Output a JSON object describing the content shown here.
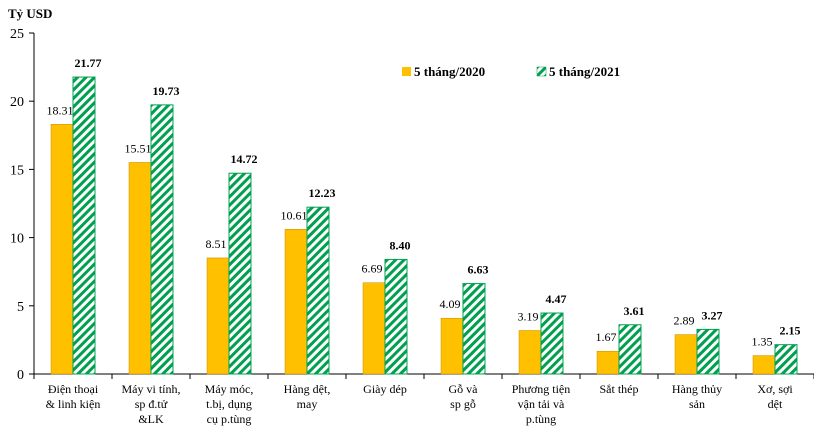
{
  "chart_data": {
    "type": "bar",
    "ylabel": "Tỷ USD",
    "ylim": [
      0,
      25
    ],
    "yticks": [
      0,
      5,
      10,
      15,
      20,
      25
    ],
    "grid": false,
    "legend_position": "top-right",
    "categories": [
      [
        "Điện thoại",
        "& linh kiện"
      ],
      [
        "Máy vi tính,",
        "sp đ.tử",
        "&LK"
      ],
      [
        "Máy móc,",
        "t.bị, dụng",
        "cụ p.tùng"
      ],
      [
        "Hàng dệt,",
        "may"
      ],
      [
        "Giày dép"
      ],
      [
        "Gỗ và",
        "sp gỗ"
      ],
      [
        "Phương tiện",
        "vận tải và",
        "p.tùng"
      ],
      [
        "Sắt thép"
      ],
      [
        "Hàng thủy",
        "sản"
      ],
      [
        "Xơ, sợi",
        "dệt"
      ]
    ],
    "series": [
      {
        "name": "5 tháng/2020",
        "color": "#FFC000",
        "pattern": "solid",
        "values": [
          18.31,
          15.51,
          8.51,
          10.61,
          6.69,
          4.09,
          3.19,
          1.67,
          2.89,
          1.35
        ],
        "labels": [
          "18.31",
          "15.51",
          "8.51",
          "10.61",
          "6.69",
          "4.09",
          "3.19",
          "1.67",
          "2.89",
          "1.35"
        ]
      },
      {
        "name": "5 tháng/2021",
        "color": "#00A050",
        "pattern": "diagonal-stripes",
        "values": [
          21.77,
          19.73,
          14.72,
          12.23,
          8.4,
          6.63,
          4.47,
          3.61,
          3.27,
          2.15
        ],
        "labels": [
          "21.77",
          "19.73",
          "14.72",
          "12.23",
          "8.40",
          "6.63",
          "4.47",
          "3.61",
          "3.27",
          "2.15"
        ]
      }
    ]
  }
}
